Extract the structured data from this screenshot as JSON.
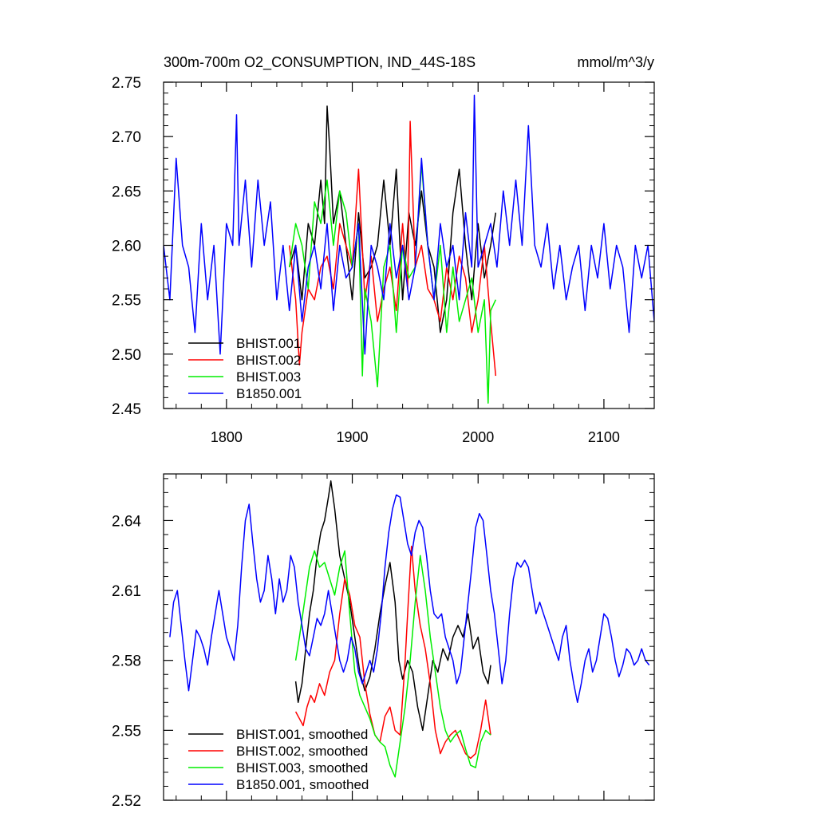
{
  "chart_data": [
    {
      "type": "line",
      "title": "300m-700m O2_CONSUMPTION, IND_44S-18S",
      "units": "mmol/m^3/y",
      "xlim": [
        1750,
        2140
      ],
      "ylim": [
        2.45,
        2.75
      ],
      "xticks": [
        1800,
        1900,
        2000,
        2100
      ],
      "xtick_labels": [
        "1800",
        "1900",
        "2000",
        "2100"
      ],
      "yticks": [
        2.45,
        2.5,
        2.55,
        2.6,
        2.65,
        2.7,
        2.75
      ],
      "ytick_labels": [
        "2.45",
        "2.50",
        "2.55",
        "2.60",
        "2.65",
        "2.70",
        "2.75"
      ],
      "legend_position": "bottom-left",
      "series": [
        {
          "name": "BHIST.001",
          "color": "#000000",
          "x": [
            1850,
            1855,
            1860,
            1865,
            1870,
            1875,
            1878,
            1880,
            1882,
            1885,
            1890,
            1895,
            1900,
            1905,
            1910,
            1915,
            1920,
            1925,
            1930,
            1935,
            1940,
            1945,
            1950,
            1955,
            1960,
            1965,
            1970,
            1975,
            1980,
            1985,
            1990,
            1995,
            2000,
            2005,
            2010,
            2014
          ],
          "y": [
            2.58,
            2.6,
            2.55,
            2.62,
            2.6,
            2.66,
            2.62,
            2.728,
            2.69,
            2.62,
            2.65,
            2.6,
            2.55,
            2.63,
            2.57,
            2.58,
            2.6,
            2.66,
            2.6,
            2.67,
            2.55,
            2.63,
            2.6,
            2.65,
            2.6,
            2.58,
            2.52,
            2.55,
            2.63,
            2.67,
            2.6,
            2.55,
            2.62,
            2.57,
            2.6,
            2.63
          ]
        },
        {
          "name": "BHIST.002",
          "color": "#ff0000",
          "x": [
            1850,
            1855,
            1858,
            1860,
            1865,
            1870,
            1875,
            1880,
            1885,
            1890,
            1895,
            1900,
            1905,
            1910,
            1915,
            1920,
            1925,
            1930,
            1935,
            1940,
            1944,
            1946,
            1950,
            1955,
            1960,
            1965,
            1970,
            1975,
            1980,
            1985,
            1990,
            1995,
            2000,
            2005,
            2010,
            2014
          ],
          "y": [
            2.6,
            2.55,
            2.49,
            2.52,
            2.56,
            2.55,
            2.58,
            2.59,
            2.56,
            2.62,
            2.6,
            2.58,
            2.67,
            2.55,
            2.59,
            2.53,
            2.56,
            2.58,
            2.54,
            2.62,
            2.56,
            2.714,
            2.58,
            2.6,
            2.56,
            2.55,
            2.53,
            2.58,
            2.55,
            2.59,
            2.57,
            2.52,
            2.55,
            2.6,
            2.53,
            2.48
          ]
        },
        {
          "name": "BHIST.003",
          "color": "#00ee00",
          "x": [
            1850,
            1855,
            1860,
            1865,
            1870,
            1875,
            1880,
            1885,
            1890,
            1895,
            1900,
            1905,
            1908,
            1910,
            1915,
            1920,
            1925,
            1930,
            1935,
            1940,
            1945,
            1950,
            1955,
            1960,
            1965,
            1970,
            1975,
            1980,
            1985,
            1990,
            1995,
            2000,
            2005,
            2008,
            2010,
            2014
          ],
          "y": [
            2.58,
            2.62,
            2.6,
            2.56,
            2.64,
            2.62,
            2.66,
            2.6,
            2.65,
            2.63,
            2.58,
            2.62,
            2.48,
            2.56,
            2.53,
            2.47,
            2.58,
            2.6,
            2.52,
            2.6,
            2.57,
            2.58,
            2.675,
            2.6,
            2.55,
            2.6,
            2.52,
            2.58,
            2.53,
            2.55,
            2.57,
            2.52,
            2.55,
            2.455,
            2.54,
            2.55
          ]
        },
        {
          "name": "B1850.001",
          "color": "#0000ff",
          "x": [
            1750,
            1755,
            1760,
            1765,
            1770,
            1775,
            1780,
            1785,
            1790,
            1795,
            1800,
            1805,
            1808,
            1810,
            1815,
            1820,
            1825,
            1830,
            1835,
            1840,
            1845,
            1850,
            1855,
            1860,
            1865,
            1870,
            1875,
            1880,
            1885,
            1890,
            1895,
            1900,
            1905,
            1910,
            1915,
            1920,
            1925,
            1930,
            1935,
            1940,
            1945,
            1950,
            1955,
            1960,
            1965,
            1970,
            1975,
            1980,
            1985,
            1990,
            1995,
            1997,
            2000,
            2005,
            2010,
            2015,
            2020,
            2025,
            2030,
            2035,
            2040,
            2045,
            2050,
            2055,
            2060,
            2065,
            2070,
            2075,
            2080,
            2085,
            2090,
            2095,
            2100,
            2105,
            2110,
            2115,
            2120,
            2125,
            2130,
            2135,
            2140
          ],
          "y": [
            2.6,
            2.55,
            2.68,
            2.6,
            2.58,
            2.52,
            2.62,
            2.55,
            2.6,
            2.5,
            2.62,
            2.6,
            2.72,
            2.6,
            2.66,
            2.58,
            2.66,
            2.6,
            2.64,
            2.55,
            2.6,
            2.54,
            2.6,
            2.53,
            2.58,
            2.6,
            2.56,
            2.62,
            2.54,
            2.6,
            2.57,
            2.58,
            2.62,
            2.5,
            2.6,
            2.58,
            2.55,
            2.62,
            2.57,
            2.6,
            2.55,
            2.58,
            2.68,
            2.6,
            2.55,
            2.62,
            2.58,
            2.6,
            2.55,
            2.63,
            2.58,
            2.738,
            2.58,
            2.6,
            2.62,
            2.58,
            2.65,
            2.6,
            2.66,
            2.6,
            2.71,
            2.6,
            2.58,
            2.62,
            2.56,
            2.6,
            2.55,
            2.58,
            2.6,
            2.54,
            2.6,
            2.57,
            2.62,
            2.56,
            2.6,
            2.58,
            2.52,
            2.6,
            2.57,
            2.6,
            2.53
          ]
        }
      ]
    },
    {
      "type": "line",
      "xlim": [
        1750,
        2140
      ],
      "ylim": [
        2.52,
        2.66
      ],
      "xticks": [
        1800,
        1900,
        2000,
        2100
      ],
      "yticks": [
        2.52,
        2.55,
        2.58,
        2.61,
        2.64
      ],
      "ytick_labels": [
        "2.52",
        "2.55",
        "2.58",
        "2.61",
        "2.64"
      ],
      "legend_position": "bottom-left",
      "series": [
        {
          "name": "BHIST.001, smoothed",
          "color": "#000000",
          "x": [
            1855,
            1857,
            1860,
            1863,
            1866,
            1869,
            1872,
            1875,
            1878,
            1881,
            1883,
            1886,
            1890,
            1894,
            1898,
            1902,
            1906,
            1910,
            1914,
            1918,
            1922,
            1926,
            1930,
            1934,
            1937,
            1940,
            1944,
            1948,
            1952,
            1956,
            1960,
            1964,
            1968,
            1972,
            1976,
            1980,
            1984,
            1988,
            1992,
            1996,
            2000,
            2004,
            2008,
            2010
          ],
          "y": [
            2.571,
            2.562,
            2.57,
            2.585,
            2.6,
            2.61,
            2.625,
            2.635,
            2.64,
            2.65,
            2.657,
            2.645,
            2.625,
            2.615,
            2.605,
            2.59,
            2.575,
            2.567,
            2.573,
            2.585,
            2.6,
            2.612,
            2.622,
            2.605,
            2.58,
            2.572,
            2.58,
            2.575,
            2.56,
            2.55,
            2.565,
            2.58,
            2.575,
            2.585,
            2.58,
            2.59,
            2.595,
            2.59,
            2.6,
            2.585,
            2.59,
            2.575,
            2.57,
            2.578
          ]
        },
        {
          "name": "BHIST.002, smoothed",
          "color": "#ff0000",
          "x": [
            1855,
            1858,
            1861,
            1864,
            1867,
            1870,
            1874,
            1878,
            1882,
            1886,
            1890,
            1894,
            1898,
            1902,
            1906,
            1910,
            1914,
            1918,
            1922,
            1926,
            1930,
            1934,
            1938,
            1942,
            1944,
            1947,
            1950,
            1954,
            1958,
            1962,
            1966,
            1970,
            1974,
            1978,
            1982,
            1986,
            1990,
            1994,
            1998,
            2002,
            2006,
            2010
          ],
          "y": [
            2.558,
            2.555,
            2.552,
            2.56,
            2.565,
            2.562,
            2.57,
            2.565,
            2.575,
            2.58,
            2.6,
            2.615,
            2.608,
            2.595,
            2.59,
            2.57,
            2.557,
            2.548,
            2.545,
            2.556,
            2.56,
            2.55,
            2.548,
            2.58,
            2.6,
            2.629,
            2.61,
            2.595,
            2.585,
            2.57,
            2.55,
            2.54,
            2.545,
            2.548,
            2.55,
            2.545,
            2.54,
            2.538,
            2.54,
            2.55,
            2.563,
            2.548
          ]
        },
        {
          "name": "BHIST.003, smoothed",
          "color": "#00ee00",
          "x": [
            1855,
            1858,
            1862,
            1866,
            1870,
            1874,
            1878,
            1882,
            1886,
            1890,
            1894,
            1898,
            1902,
            1906,
            1910,
            1914,
            1918,
            1922,
            1926,
            1930,
            1934,
            1938,
            1942,
            1946,
            1950,
            1954,
            1958,
            1962,
            1966,
            1970,
            1974,
            1978,
            1982,
            1986,
            1990,
            1994,
            1998,
            2002,
            2006,
            2010
          ],
          "y": [
            2.58,
            2.59,
            2.605,
            2.62,
            2.627,
            2.62,
            2.622,
            2.615,
            2.608,
            2.62,
            2.627,
            2.6,
            2.575,
            2.565,
            2.56,
            2.555,
            2.548,
            2.545,
            2.543,
            2.535,
            2.53,
            2.545,
            2.56,
            2.58,
            2.605,
            2.625,
            2.61,
            2.59,
            2.575,
            2.56,
            2.55,
            2.545,
            2.548,
            2.55,
            2.542,
            2.535,
            2.534,
            2.545,
            2.55,
            2.548
          ]
        },
        {
          "name": "B1850.001, smoothed",
          "color": "#0000ff",
          "x": [
            1755,
            1758,
            1761,
            1764,
            1767,
            1770,
            1773,
            1776,
            1779,
            1782,
            1785,
            1788,
            1791,
            1794,
            1797,
            1800,
            1803,
            1806,
            1809,
            1812,
            1815,
            1818,
            1821,
            1824,
            1827,
            1830,
            1833,
            1836,
            1839,
            1842,
            1845,
            1848,
            1851,
            1854,
            1857,
            1860,
            1863,
            1866,
            1869,
            1872,
            1875,
            1878,
            1881,
            1884,
            1887,
            1890,
            1893,
            1896,
            1899,
            1902,
            1905,
            1908,
            1911,
            1914,
            1917,
            1920,
            1923,
            1926,
            1929,
            1932,
            1935,
            1938,
            1941,
            1944,
            1947,
            1950,
            1953,
            1956,
            1959,
            1962,
            1965,
            1968,
            1971,
            1974,
            1977,
            1980,
            1983,
            1986,
            1989,
            1992,
            1995,
            1998,
            2001,
            2004,
            2007,
            2010,
            2013,
            2016,
            2019,
            2022,
            2025,
            2028,
            2031,
            2034,
            2037,
            2040,
            2043,
            2046,
            2049,
            2052,
            2055,
            2058,
            2061,
            2064,
            2067,
            2070,
            2073,
            2076,
            2079,
            2082,
            2085,
            2088,
            2091,
            2094,
            2097,
            2100,
            2103,
            2106,
            2109,
            2112,
            2115,
            2118,
            2121,
            2124,
            2127,
            2130,
            2133,
            2136
          ],
          "y": [
            2.59,
            2.605,
            2.61,
            2.595,
            2.58,
            2.567,
            2.58,
            2.593,
            2.59,
            2.585,
            2.578,
            2.59,
            2.6,
            2.61,
            2.6,
            2.59,
            2.585,
            2.58,
            2.595,
            2.62,
            2.64,
            2.647,
            2.63,
            2.615,
            2.605,
            2.61,
            2.625,
            2.615,
            2.6,
            2.615,
            2.605,
            2.61,
            2.625,
            2.62,
            2.605,
            2.595,
            2.585,
            2.582,
            2.59,
            2.598,
            2.595,
            2.6,
            2.61,
            2.6,
            2.59,
            2.58,
            2.575,
            2.58,
            2.59,
            2.585,
            2.575,
            2.57,
            2.575,
            2.58,
            2.575,
            2.585,
            2.6,
            2.62,
            2.635,
            2.645,
            2.651,
            2.65,
            2.64,
            2.63,
            2.625,
            2.635,
            2.64,
            2.637,
            2.625,
            2.61,
            2.6,
            2.598,
            2.6,
            2.59,
            2.585,
            2.58,
            2.57,
            2.575,
            2.59,
            2.605,
            2.62,
            2.637,
            2.643,
            2.64,
            2.625,
            2.61,
            2.6,
            2.585,
            2.57,
            2.58,
            2.6,
            2.615,
            2.622,
            2.62,
            2.623,
            2.62,
            2.61,
            2.6,
            2.605,
            2.6,
            2.595,
            2.59,
            2.585,
            2.58,
            2.59,
            2.595,
            2.58,
            2.57,
            2.562,
            2.57,
            2.58,
            2.585,
            2.575,
            2.58,
            2.59,
            2.6,
            2.598,
            2.59,
            2.58,
            2.573,
            2.578,
            2.585,
            2.583,
            2.578,
            2.58,
            2.585,
            2.58,
            2.578
          ]
        }
      ]
    }
  ]
}
